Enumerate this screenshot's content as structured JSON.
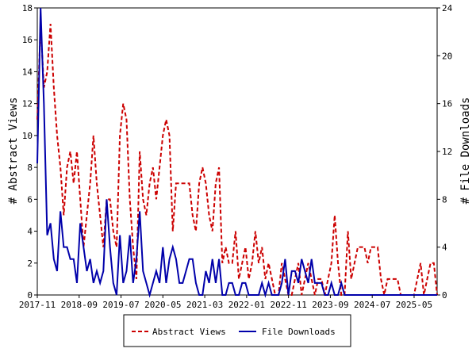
{
  "chart_data": {
    "type": "line",
    "title": "",
    "x_ticks": [
      "2017-11",
      "2018-09",
      "2019-07",
      "2020-05",
      "2021-03",
      "2022-01",
      "2022-11",
      "2023-09",
      "2024-07",
      "2025-05"
    ],
    "y_left": {
      "label": "# Abstract Views",
      "ylim": [
        0,
        18
      ],
      "ticks": [
        "0",
        "2",
        "4",
        "6",
        "8",
        "10",
        "12",
        "14",
        "16",
        "18"
      ]
    },
    "y_right": {
      "label": "# File Downloads",
      "ylim": [
        0,
        24
      ],
      "ticks": [
        "0",
        "4",
        "8",
        "12",
        "16",
        "20",
        "24"
      ]
    },
    "grid": false,
    "legend_position": "bottom",
    "series": [
      {
        "name": "Abstract Views",
        "axis": "left",
        "color": "#cc0000",
        "line_style": "dashed",
        "values": [
          11,
          17,
          13,
          14,
          17,
          13,
          10,
          8,
          5,
          8,
          9,
          7,
          9,
          6,
          3,
          5,
          7,
          10,
          7,
          5,
          3,
          6,
          6,
          4,
          3,
          10,
          12,
          11,
          6,
          3,
          1,
          9,
          6,
          5,
          7,
          8,
          6,
          8,
          10,
          11,
          10,
          4,
          7,
          7,
          7,
          7,
          7,
          5,
          4,
          7,
          8,
          7,
          5,
          4,
          7,
          8,
          2,
          3,
          2,
          2,
          4,
          1,
          2,
          3,
          1,
          2,
          4,
          2,
          3,
          1,
          2,
          1,
          0,
          0,
          2,
          1,
          0,
          0,
          1,
          2,
          0,
          1,
          2,
          1,
          0,
          1,
          1,
          0,
          1,
          2,
          5,
          2,
          0,
          0,
          4,
          1,
          2,
          3,
          3,
          3,
          2,
          3,
          3,
          3,
          1,
          0,
          1,
          1,
          1,
          1,
          0,
          0,
          0,
          0,
          0,
          1,
          2,
          0,
          1,
          2,
          2,
          0
        ]
      },
      {
        "name": "File Downloads",
        "axis": "right",
        "color": "#0000aa",
        "line_style": "solid",
        "values": [
          11,
          24,
          16,
          5,
          6,
          3,
          2,
          7,
          4,
          4,
          3,
          3,
          1,
          6,
          4,
          2,
          3,
          1,
          2,
          1,
          2,
          8,
          4,
          1,
          0,
          5,
          1,
          2,
          5,
          1,
          3,
          7,
          2,
          1,
          0,
          1,
          2,
          1,
          4,
          1,
          3,
          4,
          3,
          1,
          1,
          2,
          3,
          3,
          1,
          0,
          0,
          2,
          1,
          3,
          1,
          3,
          0,
          0,
          1,
          1,
          0,
          0,
          1,
          1,
          0,
          0,
          0,
          0,
          1,
          0,
          1,
          0,
          0,
          0,
          1,
          3,
          0,
          2,
          2,
          1,
          3,
          2,
          1,
          3,
          1,
          1,
          1,
          0,
          0,
          1,
          0,
          0,
          1,
          0,
          0,
          0,
          0,
          0,
          0,
          0,
          0,
          0,
          0,
          0,
          0,
          0,
          0,
          0,
          0,
          0,
          0,
          0,
          0,
          0,
          0,
          0,
          0,
          0,
          0,
          0,
          0,
          0
        ]
      }
    ]
  }
}
